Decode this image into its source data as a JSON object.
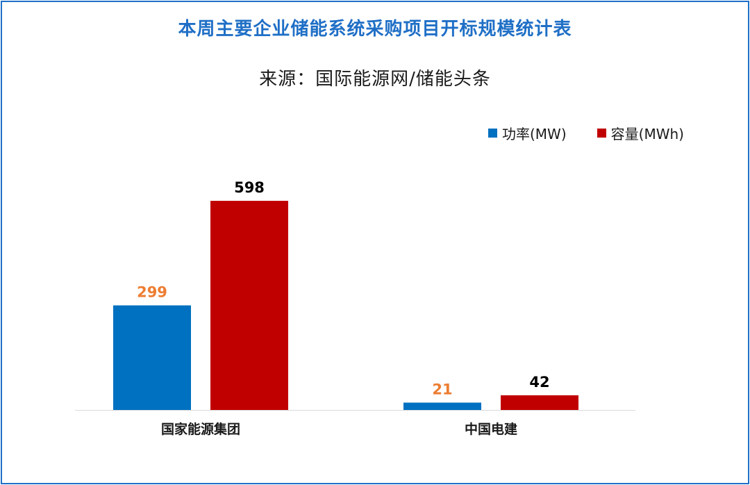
{
  "chart_data": {
    "type": "bar",
    "title": "本周主要企业储能系统采购项目开标规模统计表",
    "subtitle": "来源：国际能源网/储能头条",
    "categories": [
      "国家能源集团",
      "中国电建"
    ],
    "series": [
      {
        "name": "功率(MW)",
        "values": [
          299,
          21
        ],
        "color": "#0070c0",
        "label_color": "#ed7d31"
      },
      {
        "name": "容量(MWh)",
        "values": [
          598,
          42
        ],
        "color": "#c00000",
        "label_color": "#000000"
      }
    ],
    "ylim": [
      0,
      600
    ],
    "legend_position": "top-right",
    "grid": false
  }
}
